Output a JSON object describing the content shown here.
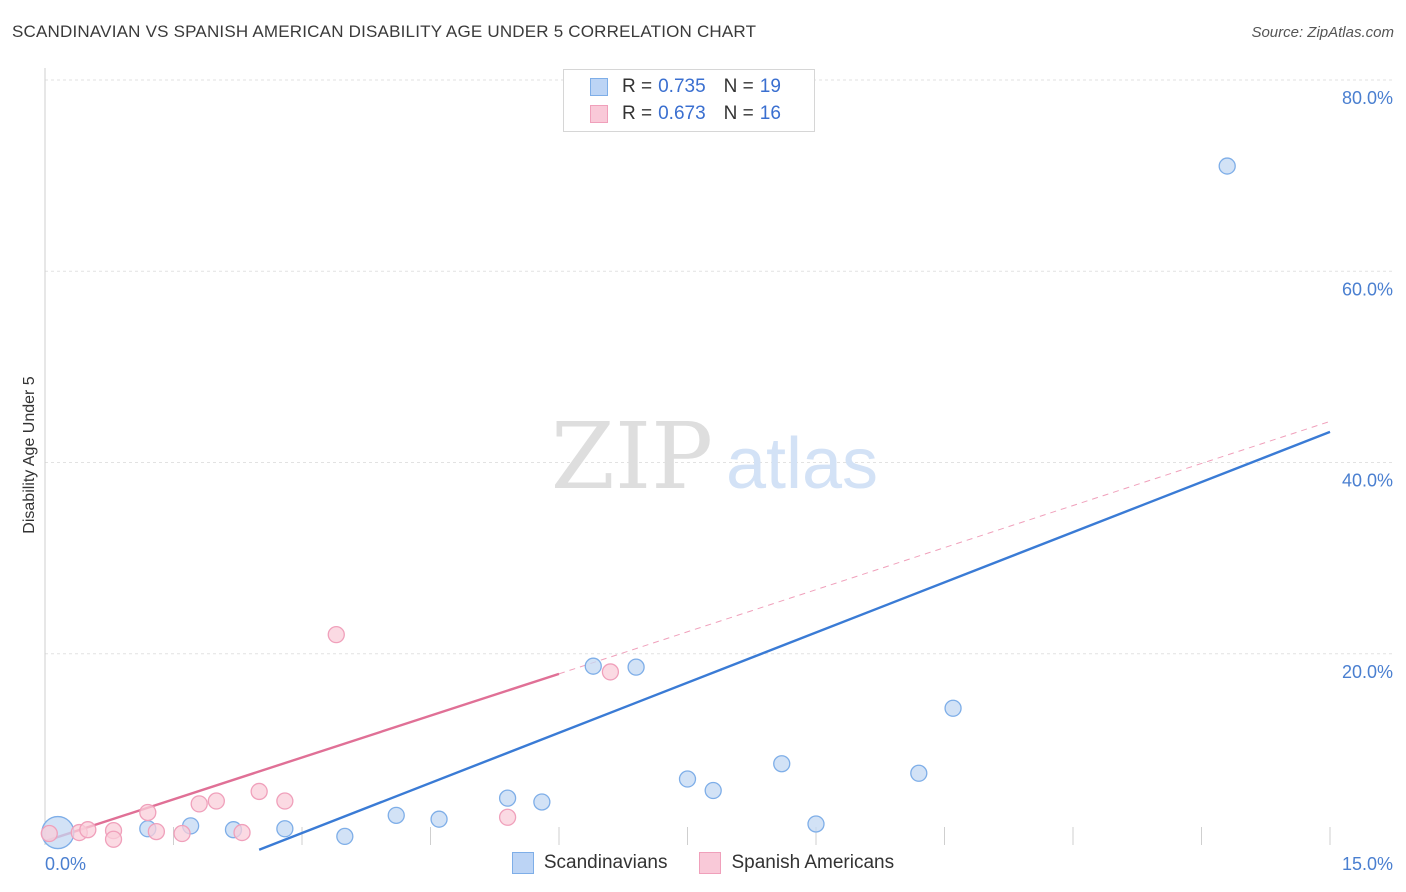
{
  "header": {
    "title": "SCANDINAVIAN VS SPANISH AMERICAN DISABILITY AGE UNDER 5 CORRELATION CHART",
    "source": "Source: ZipAtlas.com"
  },
  "watermark": {
    "zip": "ZIP",
    "atlas": "atlas"
  },
  "legend": {
    "items": [
      {
        "r_label": "R =",
        "r_value": "0.735",
        "n_label": "N =",
        "n_value": "19",
        "color": "#7eaee8",
        "fill": "#bcd4f5"
      },
      {
        "r_label": "R =",
        "r_value": "0.673",
        "n_label": "N =",
        "n_value": "16",
        "color": "#f0a0bb",
        "fill": "#f9c9d8"
      }
    ]
  },
  "chart_data": {
    "type": "scatter",
    "title": "SCANDINAVIAN VS SPANISH AMERICAN DISABILITY AGE UNDER 5 CORRELATION CHART",
    "xlabel": "",
    "ylabel": "Disability Age Under 5",
    "xlim": [
      0,
      15
    ],
    "ylim": [
      0,
      80
    ],
    "x_tick_labels": [
      "0.0%",
      "15.0%"
    ],
    "y_ticks": [
      20,
      40,
      60,
      80
    ],
    "y_tick_labels": [
      "20.0%",
      "40.0%",
      "60.0%",
      "80.0%"
    ],
    "grid": true,
    "legend_position": "top-center",
    "series": [
      {
        "name": "Scandinavians",
        "color": "#3a7bd5",
        "point_fill": "#c3d8f3",
        "point_stroke": "#7eaee8",
        "points": [
          [
            0.15,
            1.3
          ],
          [
            1.2,
            1.7
          ],
          [
            1.7,
            2.0
          ],
          [
            2.2,
            1.6
          ],
          [
            2.8,
            1.7
          ],
          [
            3.5,
            0.9
          ],
          [
            4.1,
            3.1
          ],
          [
            4.6,
            2.7
          ],
          [
            5.4,
            4.9
          ],
          [
            5.8,
            4.5
          ],
          [
            6.4,
            18.7
          ],
          [
            6.9,
            18.6
          ],
          [
            7.5,
            6.9
          ],
          [
            7.8,
            5.7
          ],
          [
            8.6,
            8.5
          ],
          [
            9.0,
            2.2
          ],
          [
            10.2,
            7.5
          ],
          [
            10.6,
            14.3
          ],
          [
            13.8,
            71.0
          ]
        ],
        "trend": {
          "x": [
            2.5,
            15.0
          ],
          "y": [
            -0.5,
            43.2
          ]
        }
      },
      {
        "name": "Spanish Americans",
        "color": "#e07096",
        "point_fill": "#f9cdda",
        "point_stroke": "#f0a0bb",
        "points": [
          [
            0.05,
            1.2
          ],
          [
            0.4,
            1.3
          ],
          [
            0.5,
            1.6
          ],
          [
            0.8,
            1.5
          ],
          [
            1.2,
            3.4
          ],
          [
            1.3,
            1.4
          ],
          [
            1.6,
            1.2
          ],
          [
            1.8,
            4.3
          ],
          [
            2.0,
            4.6
          ],
          [
            2.3,
            1.3
          ],
          [
            2.5,
            5.6
          ],
          [
            2.8,
            4.6
          ],
          [
            3.4,
            22.0
          ],
          [
            5.4,
            2.9
          ],
          [
            6.6,
            18.1
          ],
          [
            0.8,
            0.6
          ]
        ],
        "trend": {
          "x": [
            0.0,
            6.0
          ],
          "y": [
            0.4,
            17.9
          ]
        },
        "trend_extension": {
          "x": [
            6.0,
            15.0
          ],
          "y": [
            17.9,
            44.3
          ]
        }
      }
    ]
  }
}
